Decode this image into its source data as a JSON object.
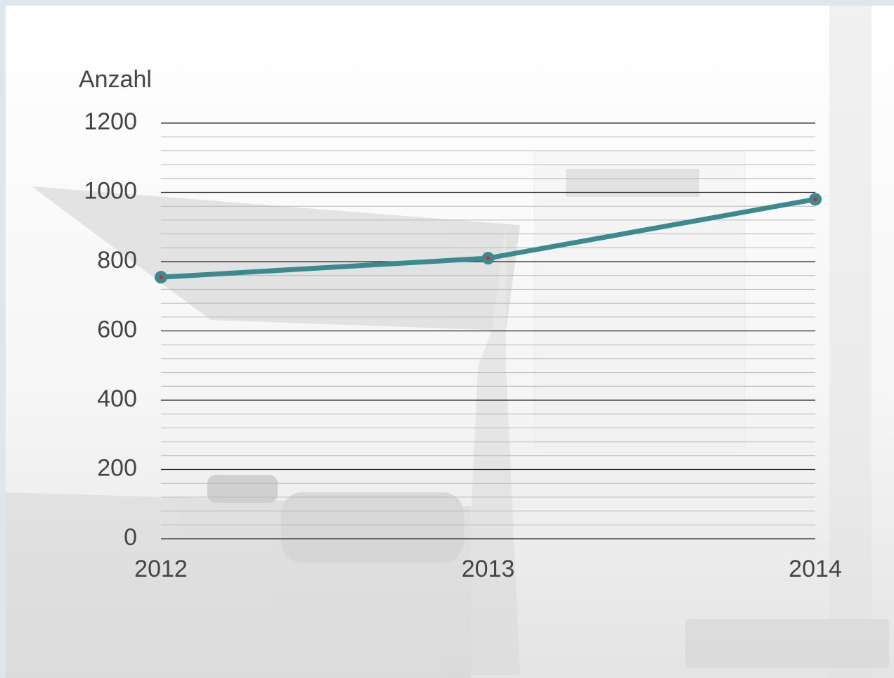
{
  "chart_data": {
    "type": "line",
    "y_label": "Anzahl",
    "categories": [
      "2012",
      "2013",
      "2014"
    ],
    "series": [
      {
        "name": "Anzahl",
        "color": "#3b8a90",
        "values": [
          755,
          810,
          980
        ]
      }
    ],
    "ylim": [
      0,
      1200
    ],
    "yticks": [
      0,
      200,
      400,
      600,
      800,
      1000,
      1200
    ],
    "grid": true
  }
}
